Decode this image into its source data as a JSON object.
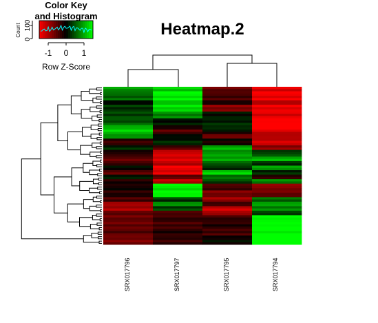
{
  "chart_data": {
    "type": "heatmap",
    "title": "Heatmap.2",
    "columns": [
      "SRX017796",
      "SRX017797",
      "SRX017795",
      "SRX017794"
    ],
    "color_key": {
      "title_line1": "Color Key",
      "title_line2": "and Histogram",
      "ylabel": "Count",
      "y_ticks": [
        "0",
        "100"
      ],
      "x_ticks": [
        "-1",
        "0",
        "1"
      ],
      "xlabel": "Row Z-Score",
      "range": [
        -1.5,
        1.5
      ],
      "colors": {
        "low": "#ff0000",
        "mid": "#000000",
        "high": "#00ff00",
        "histogram": "#00ffff"
      }
    },
    "blocks": [
      {
        "rows": 2,
        "values": [
          0.9,
          1.2,
          -0.6,
          -1.3
        ]
      },
      {
        "rows": 4,
        "values": [
          0.6,
          1.4,
          -0.4,
          -1.4
        ]
      },
      {
        "rows": 2,
        "values": [
          0.1,
          1.2,
          -0.2,
          -1.1
        ]
      },
      {
        "rows": 3,
        "values": [
          0.3,
          1.3,
          -0.8,
          -1.4
        ]
      },
      {
        "rows": 3,
        "values": [
          0.4,
          0.8,
          0.1,
          -1.3
        ]
      },
      {
        "rows": 3,
        "values": [
          0.5,
          0.1,
          0.2,
          -1.6
        ]
      },
      {
        "rows": 2,
        "values": [
          1.1,
          -0.2,
          0.3,
          -1.6
        ]
      },
      {
        "rows": 2,
        "values": [
          1.2,
          -0.5,
          0.0,
          -1.2
        ]
      },
      {
        "rows": 2,
        "values": [
          0.8,
          0.0,
          -0.6,
          -1.0
        ]
      },
      {
        "rows": 3,
        "values": [
          -0.3,
          0.2,
          -0.1,
          -1.2
        ]
      },
      {
        "rows": 2,
        "values": [
          0.2,
          -0.4,
          1.0,
          -0.8
        ]
      },
      {
        "rows": 3,
        "values": [
          -0.2,
          -1.2,
          0.9,
          0.4
        ]
      },
      {
        "rows": 2,
        "values": [
          -0.6,
          -1.3,
          1.0,
          1.1
        ]
      },
      {
        "rows": 2,
        "values": [
          -0.4,
          -1.1,
          0.6,
          0.3
        ]
      },
      {
        "rows": 2,
        "values": [
          0.0,
          -1.4,
          0.2,
          0.9
        ]
      },
      {
        "rows": 2,
        "values": [
          -0.5,
          -1.3,
          1.2,
          0.2
        ]
      },
      {
        "rows": 2,
        "values": [
          0.2,
          -0.6,
          0.7,
          -0.3
        ]
      },
      {
        "rows": 2,
        "values": [
          -0.2,
          -1.1,
          0.4,
          0.8
        ]
      },
      {
        "rows": 3,
        "values": [
          -0.1,
          1.4,
          -0.4,
          -0.8
        ]
      },
      {
        "rows": 3,
        "values": [
          -0.2,
          1.5,
          -0.7,
          -0.6
        ]
      },
      {
        "rows": 2,
        "values": [
          -0.4,
          0.3,
          -0.9,
          0.6
        ]
      },
      {
        "rows": 2,
        "values": [
          -0.9,
          0.8,
          -0.3,
          0.9
        ]
      },
      {
        "rows": 2,
        "values": [
          -1.0,
          0.4,
          -1.2,
          0.8
        ]
      },
      {
        "rows": 2,
        "values": [
          -0.6,
          -0.5,
          -1.0,
          0.4
        ]
      },
      {
        "rows": 3,
        "values": [
          -0.6,
          -0.3,
          -0.3,
          1.5
        ]
      },
      {
        "rows": 3,
        "values": [
          -0.6,
          -0.4,
          -0.2,
          1.6
        ]
      },
      {
        "rows": 3,
        "values": [
          -0.5,
          -0.2,
          -0.4,
          1.5
        ]
      },
      {
        "rows": 4,
        "values": [
          -0.7,
          -0.3,
          0.0,
          1.6
        ]
      }
    ],
    "dendrogram_columns": {
      "note": "two clusters: (SRX017796, SRX017797) and (SRX017795, SRX017794)"
    }
  }
}
